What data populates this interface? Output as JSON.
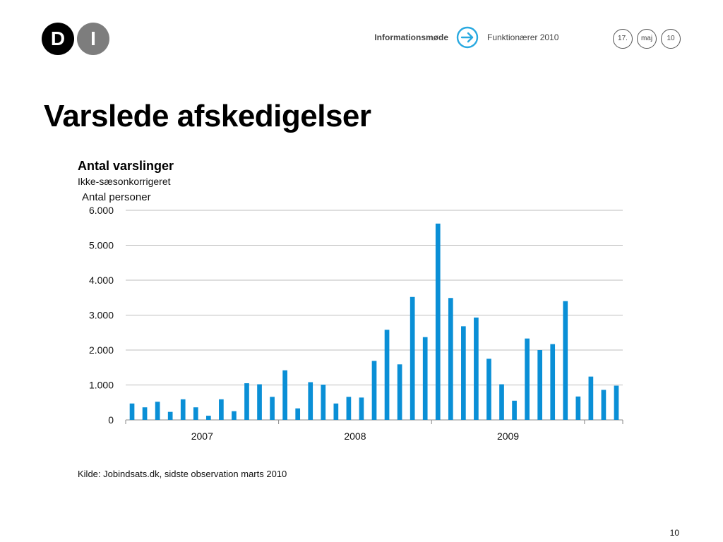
{
  "logo": {
    "letter1": "D",
    "letter2": "I"
  },
  "header": {
    "section": "Informationsmøde",
    "topic": "Funktionærer 2010",
    "date_day": "17.",
    "date_month": "maj",
    "date_year": "10",
    "arrow_icon": "arrow-right-circle-icon",
    "accent_color": "#29a9e0"
  },
  "slide": {
    "title": "Varslede afskedigelser",
    "source": "Kilde: Jobindsats.dk, sidste observation marts 2010",
    "page_number": "10"
  },
  "chart_data": {
    "type": "bar",
    "title": "Antal varslinger",
    "subtitle": "Ikke-sæsonkorrigeret",
    "ylabel": "Antal personer",
    "ylim": [
      0,
      6000
    ],
    "yticks": [
      0,
      1000,
      2000,
      3000,
      4000,
      5000,
      6000
    ],
    "ytick_labels": [
      "0",
      "1.000",
      "2.000",
      "3.000",
      "4.000",
      "5.000",
      "6.000"
    ],
    "year_labels": [
      "2007",
      "2008",
      "2009"
    ],
    "grid": true,
    "bar_color": "#0a8fd6",
    "values": [
      470,
      360,
      520,
      230,
      590,
      360,
      120,
      590,
      250,
      1050,
      1020,
      660,
      1420,
      330,
      1080,
      1010,
      470,
      660,
      640,
      1690,
      2580,
      1590,
      3520,
      2370,
      5620,
      3490,
      2680,
      2930,
      1750,
      1020,
      550,
      2330,
      2000,
      2170,
      3400,
      670,
      1240,
      860,
      980
    ]
  }
}
